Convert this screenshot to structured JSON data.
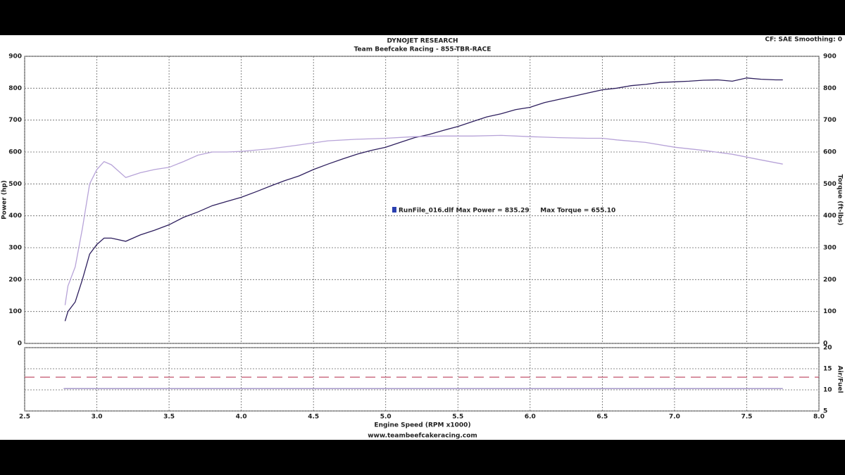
{
  "header": {
    "settings": "CF: SAE  Smoothing: 0"
  },
  "footer": "www.teambeefcakeracing.com",
  "chart_data": [
    {
      "type": "line",
      "title": "DYNOJET RESEARCH",
      "subtitle": "Team Beefcake Racing - 855-TBR-RACE",
      "y_label": "Power (hp)",
      "y2_label": "Torque (ft-lbs)",
      "annotation": "RunFile_016.dlf Max Power = 835.29     Max Torque = 655.10",
      "xlim": [
        2.5,
        8.0
      ],
      "ylim": [
        0,
        900
      ],
      "y2lim": [
        0,
        900
      ],
      "yticks": [
        0,
        100,
        200,
        300,
        400,
        500,
        600,
        700,
        800,
        900
      ],
      "y2ticks": [
        0,
        100,
        200,
        300,
        400,
        500,
        600,
        700,
        800,
        900
      ],
      "grid": true,
      "series": [
        {
          "color": "#2e1f5e",
          "x": [
            2.78,
            2.8,
            2.85,
            2.9,
            2.95,
            3.0,
            3.05,
            3.1,
            3.2,
            3.3,
            3.4,
            3.5,
            3.6,
            3.7,
            3.8,
            3.9,
            4.0,
            4.1,
            4.2,
            4.3,
            4.4,
            4.5,
            4.6,
            4.7,
            4.8,
            4.9,
            5.0,
            5.1,
            5.2,
            5.3,
            5.4,
            5.5,
            5.6,
            5.7,
            5.8,
            5.9,
            6.0,
            6.1,
            6.2,
            6.3,
            6.4,
            6.5,
            6.6,
            6.7,
            6.8,
            6.9,
            7.0,
            7.1,
            7.2,
            7.3,
            7.4,
            7.5,
            7.6,
            7.7,
            7.75
          ],
          "values": [
            70,
            100,
            130,
            200,
            280,
            310,
            330,
            330,
            320,
            340,
            355,
            372,
            395,
            412,
            432,
            445,
            458,
            475,
            493,
            510,
            525,
            545,
            562,
            578,
            593,
            605,
            615,
            630,
            645,
            655,
            668,
            680,
            695,
            710,
            720,
            733,
            740,
            755,
            765,
            775,
            785,
            795,
            800,
            808,
            812,
            818,
            820,
            822,
            825,
            826,
            822,
            832,
            828,
            826,
            826
          ]
        },
        {
          "color": "#b7a3d8",
          "axis": "y2",
          "x": [
            2.78,
            2.8,
            2.85,
            2.9,
            2.95,
            3.0,
            3.05,
            3.1,
            3.2,
            3.3,
            3.4,
            3.5,
            3.6,
            3.7,
            3.8,
            3.9,
            4.0,
            4.2,
            4.4,
            4.6,
            4.8,
            5.0,
            5.2,
            5.4,
            5.6,
            5.8,
            6.0,
            6.2,
            6.4,
            6.5,
            6.6,
            6.8,
            7.0,
            7.2,
            7.4,
            7.6,
            7.75
          ],
          "values": [
            120,
            180,
            240,
            360,
            500,
            545,
            570,
            560,
            520,
            535,
            545,
            552,
            570,
            590,
            600,
            600,
            602,
            610,
            622,
            635,
            640,
            643,
            648,
            650,
            650,
            652,
            648,
            645,
            643,
            643,
            638,
            630,
            615,
            605,
            593,
            575,
            562
          ]
        }
      ]
    },
    {
      "type": "line",
      "x_label": "Engine Speed (RPM x1000)",
      "y2_label": "Air/Fuel",
      "xlim": [
        2.5,
        8.0
      ],
      "xticks": [
        2.5,
        {
          "value": 3,
          "label": "3.0"
        },
        3.5,
        {
          "value": 4,
          "label": "4.0"
        },
        4.5,
        {
          "value": 5,
          "label": "5.0"
        },
        5.5,
        {
          "value": 6,
          "label": "6.0"
        },
        6.5,
        {
          "value": 7,
          "label": "7.0"
        },
        7.5,
        {
          "value": 8,
          "label": "8.0"
        }
      ],
      "y2lim": [
        5,
        20
      ],
      "y2ticks": [
        5,
        10,
        15,
        20
      ],
      "grid": true,
      "series": [
        {
          "color": "#c0506a",
          "dashed": true,
          "axis": "y2",
          "x": [
            2.5,
            8.0
          ],
          "values": [
            13,
            13
          ]
        },
        {
          "color": "#9d8fc4",
          "axis": "y2",
          "x": [
            2.77,
            7.75
          ],
          "values": [
            10.3,
            10.3
          ]
        }
      ]
    }
  ]
}
